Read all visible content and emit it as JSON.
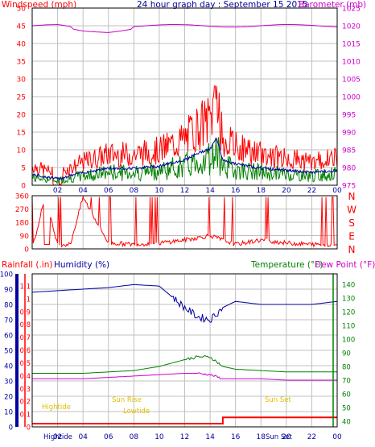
{
  "colors": {
    "wind": "#ff0000",
    "gust": "#ff0000",
    "avgwind": "#0000a0",
    "green": "#008000",
    "baro": "#cc00cc",
    "rain": "#ff0000",
    "humidity": "#0000a0",
    "temp": "#008000",
    "dew": "#cc00cc",
    "sun": "#e0c000",
    "grid": "#c0c0c0",
    "axis": "#000000"
  },
  "hour_labels": [
    "02",
    "04",
    "06",
    "08",
    "10",
    "12",
    "14",
    "16",
    "18",
    "20",
    "22",
    "00"
  ],
  "wind_panel": {
    "title": "24 hour graph day : September 15 2015",
    "left_label": "Windspeed (mph)",
    "right_label": "Barometer (mb)",
    "left_ticks": [
      "50",
      "45",
      "40",
      "35",
      "30",
      "25",
      "20",
      "15",
      "10",
      "5",
      "0"
    ],
    "right_ticks": [
      "1025",
      "1020",
      "1015",
      "1010",
      "1005",
      "1000",
      "995",
      "990",
      "985",
      "980",
      "975"
    ]
  },
  "dir_panel": {
    "left_ticks": [
      "360",
      "270",
      "180",
      "90",
      "0"
    ],
    "right_letters": [
      "N",
      "W",
      "S",
      "E",
      "N"
    ]
  },
  "weather_panel": {
    "rain_label": "Rainfall (.in)",
    "humidity_label": "Humidity (%)",
    "temp_label": "Temperature (°F)",
    "dew_label": "Dew Point (°F)",
    "humidity_ticks": [
      "100",
      "90",
      "80",
      "70",
      "60",
      "50",
      "40",
      "30",
      "20",
      "10",
      "0"
    ],
    "rain_ticks": [
      "1.1",
      "1",
      "0.9",
      "0.8",
      "0.7",
      "0.6",
      "0.5",
      "0.4",
      "0.3",
      "0.2",
      "0.1",
      "0"
    ],
    "temp_ticks": [
      "140",
      "130",
      "120",
      "110",
      "100",
      "90",
      "80",
      "70",
      "60",
      "50",
      "40"
    ],
    "markers": {
      "hightide_1": "Hightide",
      "sunrise": "Sun Rise",
      "lowtide": "Lowtide",
      "sunset": "Sun Set",
      "hightide_2": "Hightide",
      "sunset_2": "Sun Set"
    }
  },
  "chart_data": [
    {
      "type": "line",
      "title": "24 hour graph day : September 15 2015",
      "x": [
        0,
        2,
        4,
        6,
        8,
        10,
        12,
        13,
        14,
        14.5,
        15,
        16,
        18,
        20,
        22,
        24
      ],
      "ylabel": "Windspeed (mph)",
      "ylim": [
        0,
        50
      ],
      "y2label": "Barometer (mb)",
      "y2lim": [
        975,
        1025
      ],
      "series": [
        {
          "name": "Windspeed (mph)",
          "values": [
            5,
            3,
            6,
            8,
            8,
            9,
            12,
            15,
            17,
            22,
            12,
            10,
            8,
            7,
            6,
            7
          ]
        },
        {
          "name": "Barometer (mb)",
          "values": [
            1020,
            1020,
            1019,
            1019,
            1020,
            1020,
            1020,
            1020,
            1020,
            1020,
            1020,
            1020,
            1020,
            1020,
            1020,
            1020
          ]
        }
      ]
    },
    {
      "type": "line",
      "x": [
        0,
        1,
        2,
        3,
        4,
        6,
        8,
        10,
        12,
        14,
        16,
        18,
        20,
        22,
        24
      ],
      "ylim": [
        0,
        360
      ],
      "series": [
        {
          "values": [
            0,
            350,
            30,
            30,
            350,
            40,
            30,
            40,
            60,
            90,
            30,
            60,
            40,
            30,
            30
          ]
        }
      ]
    },
    {
      "type": "line",
      "x": [
        0,
        2,
        4,
        6,
        8,
        10,
        12,
        13,
        14,
        15,
        16,
        18,
        20,
        22,
        24
      ],
      "series": [
        {
          "name": "Humidity (%)",
          "values": [
            88,
            89,
            90,
            91,
            93,
            92,
            78,
            72,
            70,
            78,
            82,
            80,
            80,
            80,
            82
          ]
        },
        {
          "name": "Temperature (°F)",
          "values": [
            75,
            75,
            75,
            76,
            77,
            80,
            85,
            87,
            87,
            80,
            78,
            77,
            76,
            76,
            76
          ]
        },
        {
          "name": "Dew Point (°F)",
          "values": [
            71,
            71,
            71,
            72,
            73,
            74,
            75,
            75,
            74,
            71,
            71,
            71,
            70,
            70,
            70
          ]
        },
        {
          "name": "Rainfall (.in)",
          "values": [
            0,
            0,
            0,
            0,
            0,
            0,
            0,
            0,
            0,
            0.05,
            0.05,
            0.05,
            0.05,
            0.05,
            0.05
          ]
        }
      ]
    }
  ]
}
